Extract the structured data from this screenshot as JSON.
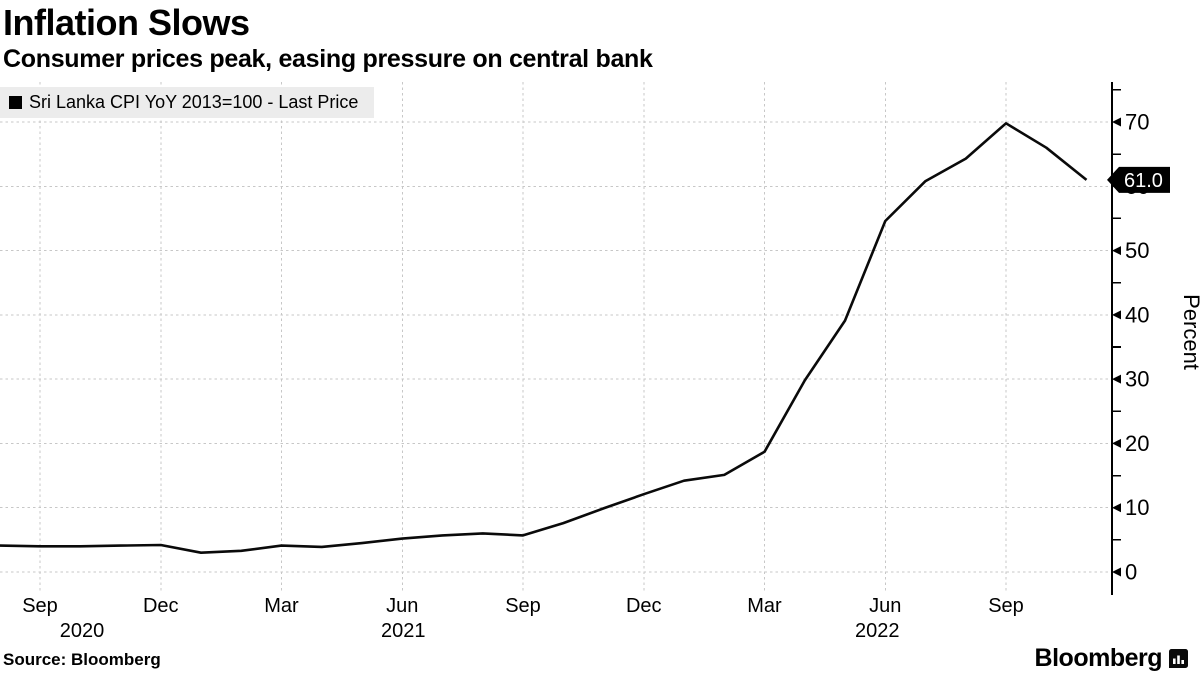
{
  "header": {
    "title": "Inflation Slows",
    "subtitle": "Consumer prices peak, easing pressure on central bank"
  },
  "legend": {
    "label": "Sri Lanka CPI YoY 2013=100 - Last Price",
    "swatch_color": "#000000"
  },
  "chart_data": {
    "type": "line",
    "title": "Inflation Slows",
    "subtitle": "Consumer prices peak, easing pressure on central bank",
    "series": [
      {
        "name": "Sri Lanka CPI YoY 2013=100 - Last Price",
        "values": [
          4.1,
          4.0,
          4.0,
          4.1,
          4.2,
          3.0,
          3.3,
          4.1,
          3.9,
          4.5,
          5.2,
          5.7,
          6.0,
          5.7,
          7.6,
          9.9,
          12.1,
          14.2,
          15.1,
          18.7,
          29.8,
          39.1,
          54.6,
          60.8,
          64.3,
          69.8,
          66.0,
          61.0
        ]
      }
    ],
    "x": [
      "Aug 2020",
      "Sep 2020",
      "Oct 2020",
      "Nov 2020",
      "Dec 2020",
      "Jan 2021",
      "Feb 2021",
      "Mar 2021",
      "Apr 2021",
      "May 2021",
      "Jun 2021",
      "Jul 2021",
      "Aug 2021",
      "Sep 2021",
      "Oct 2021",
      "Nov 2021",
      "Dec 2021",
      "Jan 2022",
      "Feb 2022",
      "Mar 2022",
      "Apr 2022",
      "May 2022",
      "Jun 2022",
      "Jul 2022",
      "Aug 2022",
      "Sep 2022",
      "Oct 2022",
      "Nov 2022"
    ],
    "xlabel": "",
    "ylabel": "Percent",
    "ylim": [
      0,
      76
    ],
    "y_ticks": [
      0,
      10,
      20,
      30,
      40,
      50,
      60,
      70
    ],
    "y_minor_ticks": [
      5,
      15,
      25,
      35,
      45,
      55,
      65,
      75
    ],
    "x_ticks": [
      {
        "label": "Sep",
        "month_index": 1
      },
      {
        "label": "Dec",
        "month_index": 4
      },
      {
        "label": "Mar",
        "month_index": 7
      },
      {
        "label": "Jun",
        "month_index": 10
      },
      {
        "label": "Sep",
        "month_index": 13
      },
      {
        "label": "Dec",
        "month_index": 16
      },
      {
        "label": "Mar",
        "month_index": 19
      },
      {
        "label": "Jun",
        "month_index": 22
      },
      {
        "label": "Sep",
        "month_index": 25
      }
    ],
    "year_labels": [
      {
        "label": "2020",
        "month_index": 1,
        "dx": 42
      },
      {
        "label": "2021",
        "month_index": 10,
        "dx": 1
      },
      {
        "label": "2022",
        "month_index": 22,
        "dx": -8
      }
    ],
    "last_price": {
      "label": "61.0",
      "value": 61.0,
      "bg": "#000000",
      "fg": "#ffffff"
    },
    "line_color": "#0a0a0a",
    "grid_color": "#c7c7c7",
    "grid": "dashed",
    "legend_position": "top-left"
  },
  "footer": {
    "source": "Source: Bloomberg",
    "brand": "Bloomberg",
    "brand_icon": "bar-chart-bubble-icon"
  }
}
